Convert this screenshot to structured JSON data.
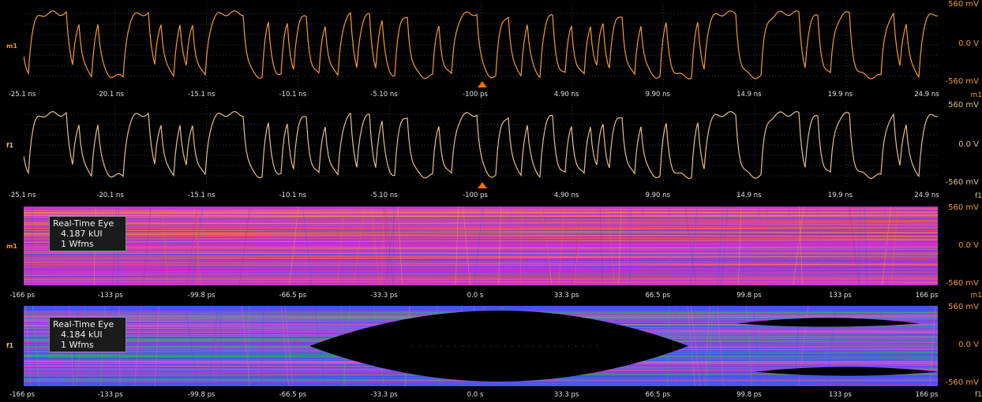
{
  "colors": {
    "orange": "#f39a2e",
    "yellow": "#e0c08a",
    "eye_hot": "#ff6633",
    "eye_mid": "#cc33cc",
    "eye_cool": "#4455ee",
    "eye_green": "#33bb55"
  },
  "panels": [
    {
      "name": "m1-waveform",
      "kind": "waveform",
      "channel_marker": "m1",
      "channel_tag": "m1",
      "y_labels": {
        "top": "560 mV",
        "mid": "0.0 V",
        "bottom": "-560 mV"
      },
      "x_labels": [
        "-25.1 ns",
        "-20.1 ns",
        "-15.1 ns",
        "-10.1 ns",
        "-5.10 ns",
        "-100 ps",
        "4.90 ns",
        "9.90 ns",
        "14.9 ns",
        "19.9 ns",
        "24.9 ns"
      ],
      "trigger_icon": "trigger-marker-icon"
    },
    {
      "name": "f1-waveform",
      "kind": "waveform",
      "channel_marker": "f1",
      "channel_tag": "f1",
      "y_labels": {
        "top": "560 mV",
        "mid": "0.0 V",
        "bottom": "-560 mV"
      },
      "x_labels": [
        "-25.1 ns",
        "-20.1 ns",
        "-15.1 ns",
        "-10.1 ns",
        "-5.10 ns",
        "-100 ps",
        "4.90 ns",
        "9.90 ns",
        "14.9 ns",
        "19.9 ns",
        "24.9 ns"
      ],
      "trigger_icon": "trigger-marker-icon"
    },
    {
      "name": "m1-eye",
      "kind": "eye",
      "channel_marker": "m1",
      "channel_tag": "m1",
      "info": {
        "title": "Real-Time Eye",
        "ui": "4.187 kUI",
        "wfms": "1 Wfms"
      },
      "y_labels": {
        "top": "560 mV",
        "mid": "0.0 V",
        "bottom": "-560 mV"
      },
      "x_labels": [
        "-166 ps",
        "-133 ps",
        "-99.8 ps",
        "-66.5 ps",
        "-33.3 ps",
        "0.0 s",
        "33.3 ps",
        "66.5 ps",
        "99.8 ps",
        "133 ps",
        "166 ps"
      ]
    },
    {
      "name": "f1-eye",
      "kind": "eye",
      "channel_marker": "f1",
      "channel_tag": "f1",
      "info": {
        "title": "Real-Time Eye",
        "ui": "4.184 kUI",
        "wfms": "1 Wfms"
      },
      "y_labels": {
        "top": "560 mV",
        "mid": "0.0 V",
        "bottom": "-560 mV"
      },
      "x_labels": [
        "-166 ps",
        "-133 ps",
        "-99.8 ps",
        "-66.5 ps",
        "-33.3 ps",
        "0.0 s",
        "33.3 ps",
        "66.5 ps",
        "99.8 ps",
        "133 ps",
        "166 ps"
      ]
    }
  ]
}
